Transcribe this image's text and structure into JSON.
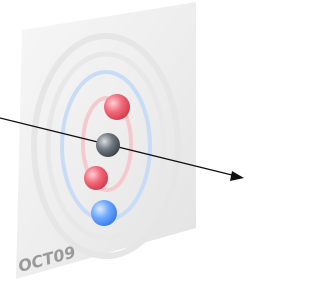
{
  "label": "OCT09"
}
